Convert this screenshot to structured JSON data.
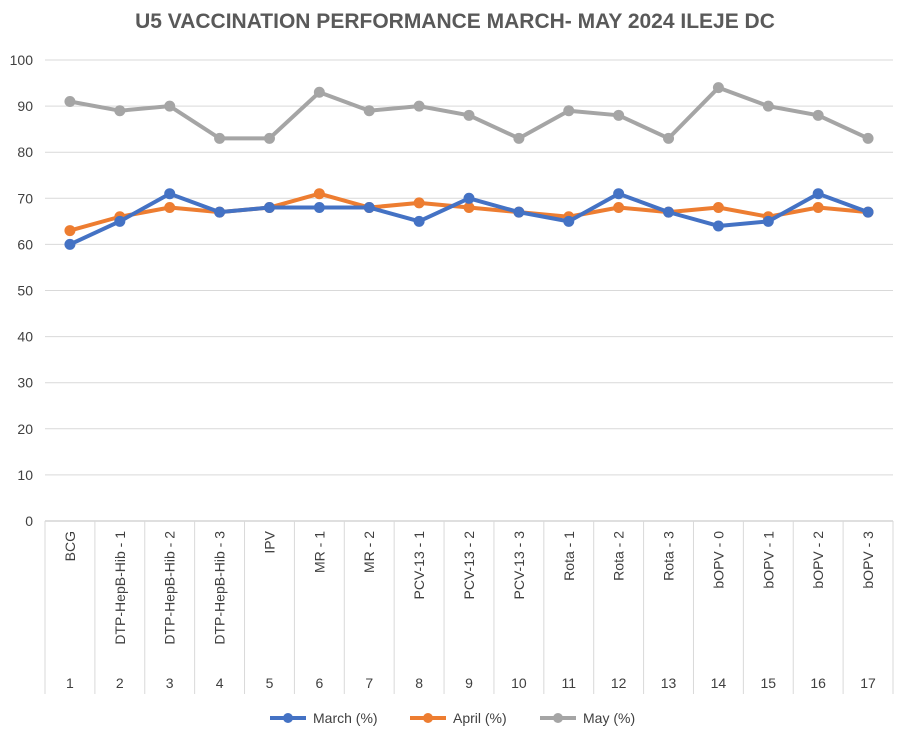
{
  "chart_data": {
    "type": "line",
    "title": "U5 VACCINATION PERFORMANCE  MARCH- MAY 2024 ILEJE DC",
    "categories": [
      "BCG",
      "DTP-HepB-Hib - 1",
      "DTP-HepB-Hib - 2",
      "DTP-HepB-Hib - 3",
      "IPV",
      "MR - 1",
      "MR - 2",
      "PCV-13 - 1",
      "PCV-13 - 2",
      "PCV-13 - 3",
      "Rota - 1",
      "Rota - 2",
      "Rota - 3",
      "bOPV - 0",
      "bOPV - 1",
      "bOPV - 2",
      "bOPV - 3"
    ],
    "index_labels": [
      "1",
      "2",
      "3",
      "4",
      "5",
      "6",
      "7",
      "8",
      "9",
      "10",
      "11",
      "12",
      "13",
      "14",
      "15",
      "16",
      "17"
    ],
    "series": [
      {
        "name": "March (%)",
        "color": "#4472C4",
        "values": [
          60,
          65,
          71,
          67,
          68,
          68,
          68,
          65,
          70,
          67,
          65,
          71,
          67,
          64,
          65,
          71,
          67
        ]
      },
      {
        "name": "April (%)",
        "color": "#ED7D31",
        "values": [
          63,
          66,
          68,
          67,
          68,
          71,
          68,
          69,
          68,
          67,
          66,
          68,
          67,
          68,
          66,
          68,
          67
        ]
      },
      {
        "name": "May (%)",
        "color": "#A5A5A5",
        "values": [
          91,
          89,
          90,
          83,
          83,
          93,
          89,
          90,
          88,
          83,
          89,
          88,
          83,
          94,
          90,
          88,
          83
        ]
      }
    ],
    "ylim": [
      0,
      100
    ],
    "yticks": [
      0,
      10,
      20,
      30,
      40,
      50,
      60,
      70,
      80,
      90,
      100
    ],
    "grid": true,
    "legend_position": "bottom"
  }
}
